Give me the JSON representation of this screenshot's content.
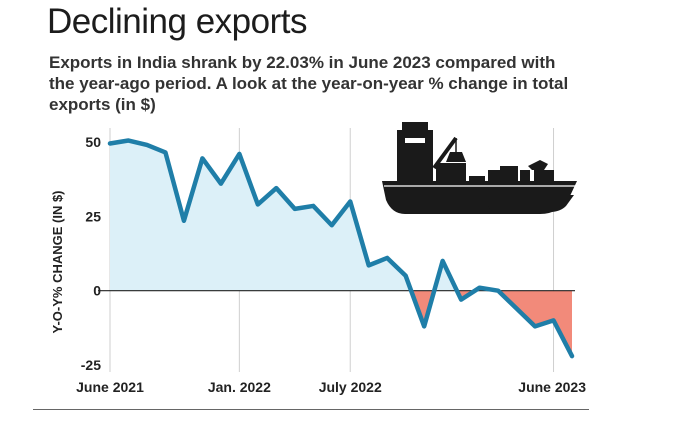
{
  "header": {
    "title": "Declining exports",
    "subtitle": "Exports in India shrank by 22.03% in June 2023 compared with the year-ago period. A look at the year-on-year % change in total exports (in $)"
  },
  "colors": {
    "line": "#1f7ea8",
    "positive_fill": "#dcf0f8",
    "negative_fill": "#f28a7a",
    "gridline": "#cfcfcf",
    "zero_line": "#222222",
    "illustration": "#1a1a1a"
  },
  "illustration": {
    "icon": "cargo-ship-icon"
  },
  "chart_data": {
    "type": "area",
    "title": "",
    "ylabel": "Y-O-Y% CHANGE (IN $)",
    "xlabel": "",
    "ylim": [
      -25,
      50
    ],
    "yticks": [
      50,
      25,
      0,
      -25
    ],
    "x_tick_labels": [
      "June 2021",
      "Jan. 2022",
      "July 2022",
      "June 2023"
    ],
    "x_tick_index": [
      0,
      7,
      13,
      24
    ],
    "grid": "vertical",
    "legend": "none",
    "series": [
      {
        "x": [
          "2021-05",
          "2021-06",
          "2021-07",
          "2021-08",
          "2021-09",
          "2021-10",
          "2021-11",
          "2021-12",
          "2022-01",
          "2022-02",
          "2022-03",
          "2022-04",
          "2022-05",
          "2022-06",
          "2022-07",
          "2022-08",
          "2022-09",
          "2022-10",
          "2022-11",
          "2022-12",
          "2023-01",
          "2023-02",
          "2023-03",
          "2023-04",
          "2023-05",
          "2023-06"
        ],
        "values": [
          49.5,
          50.5,
          49,
          46.5,
          23.5,
          44.5,
          36,
          46,
          29,
          34.5,
          27.5,
          28.5,
          22,
          30,
          8.5,
          11,
          5,
          -12,
          10,
          -3,
          1,
          0,
          -6,
          -12,
          -10,
          -22
        ]
      }
    ]
  }
}
